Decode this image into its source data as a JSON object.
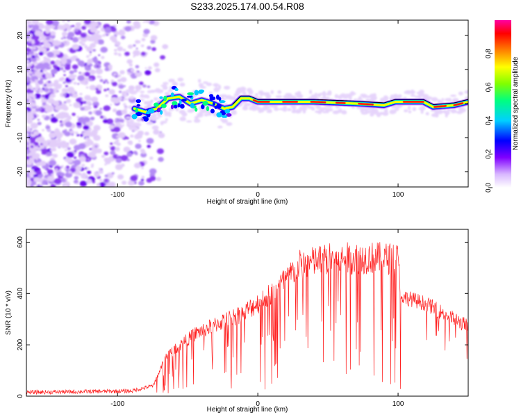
{
  "figure": {
    "title": "S233.2025.174.00.54.R08"
  },
  "chart_data": [
    {
      "type": "heatmap",
      "xlabel": "Height of straight line (km)",
      "ylabel": "Frequency (Hz)",
      "xlim": [
        -165,
        150
      ],
      "ylim": [
        -24.5,
        24.5
      ],
      "xticks": [
        -100,
        0,
        100
      ],
      "yticks": [
        -20,
        -10,
        0,
        10,
        20
      ],
      "colorbar": {
        "label": "Normalized spectral amplitude",
        "range": [
          0,
          1
        ],
        "ticks": [
          "0.0",
          "0.2",
          "0.4",
          "0.6",
          "0.8"
        ],
        "colors": [
          "#ffffff",
          "#d9b8ff",
          "#8000ff",
          "#0000ff",
          "#00d0ff",
          "#00ff80",
          "#80ff00",
          "#ffff00",
          "#ff8000",
          "#ff0000",
          "#ff00a0"
        ]
      },
      "ridge": [
        {
          "x": -88,
          "y": -1.5
        },
        {
          "x": -80,
          "y": -2.5
        },
        {
          "x": -72,
          "y": -1.5
        },
        {
          "x": -64,
          "y": 1.5
        },
        {
          "x": -56,
          "y": 2
        },
        {
          "x": -48,
          "y": 0
        },
        {
          "x": -40,
          "y": 1
        },
        {
          "x": -32,
          "y": 0
        },
        {
          "x": -24,
          "y": -1.5
        },
        {
          "x": -18,
          "y": -1
        },
        {
          "x": -12,
          "y": 1.5
        },
        {
          "x": -6,
          "y": 1.5
        },
        {
          "x": 0,
          "y": 0.5
        },
        {
          "x": 40,
          "y": 0.5
        },
        {
          "x": 70,
          "y": 0
        },
        {
          "x": 90,
          "y": -0.5
        },
        {
          "x": 98,
          "y": 0.5
        },
        {
          "x": 118,
          "y": 0.5
        },
        {
          "x": 125,
          "y": -1
        },
        {
          "x": 140,
          "y": -0.5
        },
        {
          "x": 150,
          "y": 0.5
        }
      ]
    },
    {
      "type": "line",
      "xlabel": "Height of straight line (km)",
      "ylabel": "SNR (10 * v/v)",
      "xlim": [
        -165,
        150
      ],
      "ylim": [
        0,
        650
      ],
      "xticks": [
        -100,
        0,
        100
      ],
      "yticks": [
        0,
        200,
        400,
        600
      ],
      "series_color": "#ff2020",
      "envelope": [
        {
          "x": -165,
          "y": 15
        },
        {
          "x": -90,
          "y": 20
        },
        {
          "x": -75,
          "y": 40
        },
        {
          "x": -65,
          "y": 170
        },
        {
          "x": -45,
          "y": 260
        },
        {
          "x": -30,
          "y": 300
        },
        {
          "x": -10,
          "y": 350
        },
        {
          "x": 10,
          "y": 430
        },
        {
          "x": 30,
          "y": 550
        },
        {
          "x": 50,
          "y": 575
        },
        {
          "x": 80,
          "y": 580
        },
        {
          "x": 100,
          "y": 575
        },
        {
          "x": 102,
          "y": 390
        },
        {
          "x": 120,
          "y": 360
        },
        {
          "x": 150,
          "y": 270
        }
      ]
    }
  ]
}
